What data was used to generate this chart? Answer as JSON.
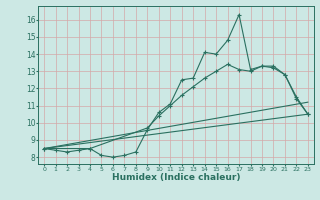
{
  "xlabel": "Humidex (Indice chaleur)",
  "bg_color": "#cce8e4",
  "grid_color": "#d4a8a8",
  "line_color": "#2a7060",
  "xlim": [
    -0.5,
    23.5
  ],
  "ylim": [
    7.6,
    16.8
  ],
  "yticks": [
    8,
    9,
    10,
    11,
    12,
    13,
    14,
    15,
    16
  ],
  "xticks": [
    0,
    1,
    2,
    3,
    4,
    5,
    6,
    7,
    8,
    9,
    10,
    11,
    12,
    13,
    14,
    15,
    16,
    17,
    18,
    19,
    20,
    21,
    22,
    23
  ],
  "series": [
    {
      "x": [
        0,
        1,
        2,
        3,
        4,
        5,
        6,
        7,
        8,
        9,
        10,
        11,
        12,
        13,
        14,
        15,
        16,
        17,
        18,
        19,
        20,
        21,
        22,
        23
      ],
      "y": [
        8.5,
        8.4,
        8.3,
        8.4,
        8.5,
        8.1,
        8.0,
        8.1,
        8.3,
        9.6,
        10.6,
        11.1,
        12.5,
        12.6,
        14.1,
        14.0,
        14.8,
        16.3,
        13.1,
        13.3,
        13.2,
        12.8,
        11.5,
        10.5
      ],
      "marker": "+"
    },
    {
      "x": [
        0,
        4,
        9,
        10,
        11,
        12,
        13,
        14,
        15,
        16,
        17,
        18,
        19,
        20,
        21,
        22,
        23
      ],
      "y": [
        8.5,
        8.5,
        9.7,
        10.4,
        11.0,
        11.6,
        12.1,
        12.6,
        13.0,
        13.4,
        13.1,
        13.0,
        13.3,
        13.3,
        12.8,
        11.4,
        10.5
      ],
      "marker": "+"
    },
    {
      "x": [
        0,
        23
      ],
      "y": [
        8.5,
        10.5
      ],
      "marker": null
    },
    {
      "x": [
        0,
        23
      ],
      "y": [
        8.5,
        11.2
      ],
      "marker": null
    }
  ]
}
